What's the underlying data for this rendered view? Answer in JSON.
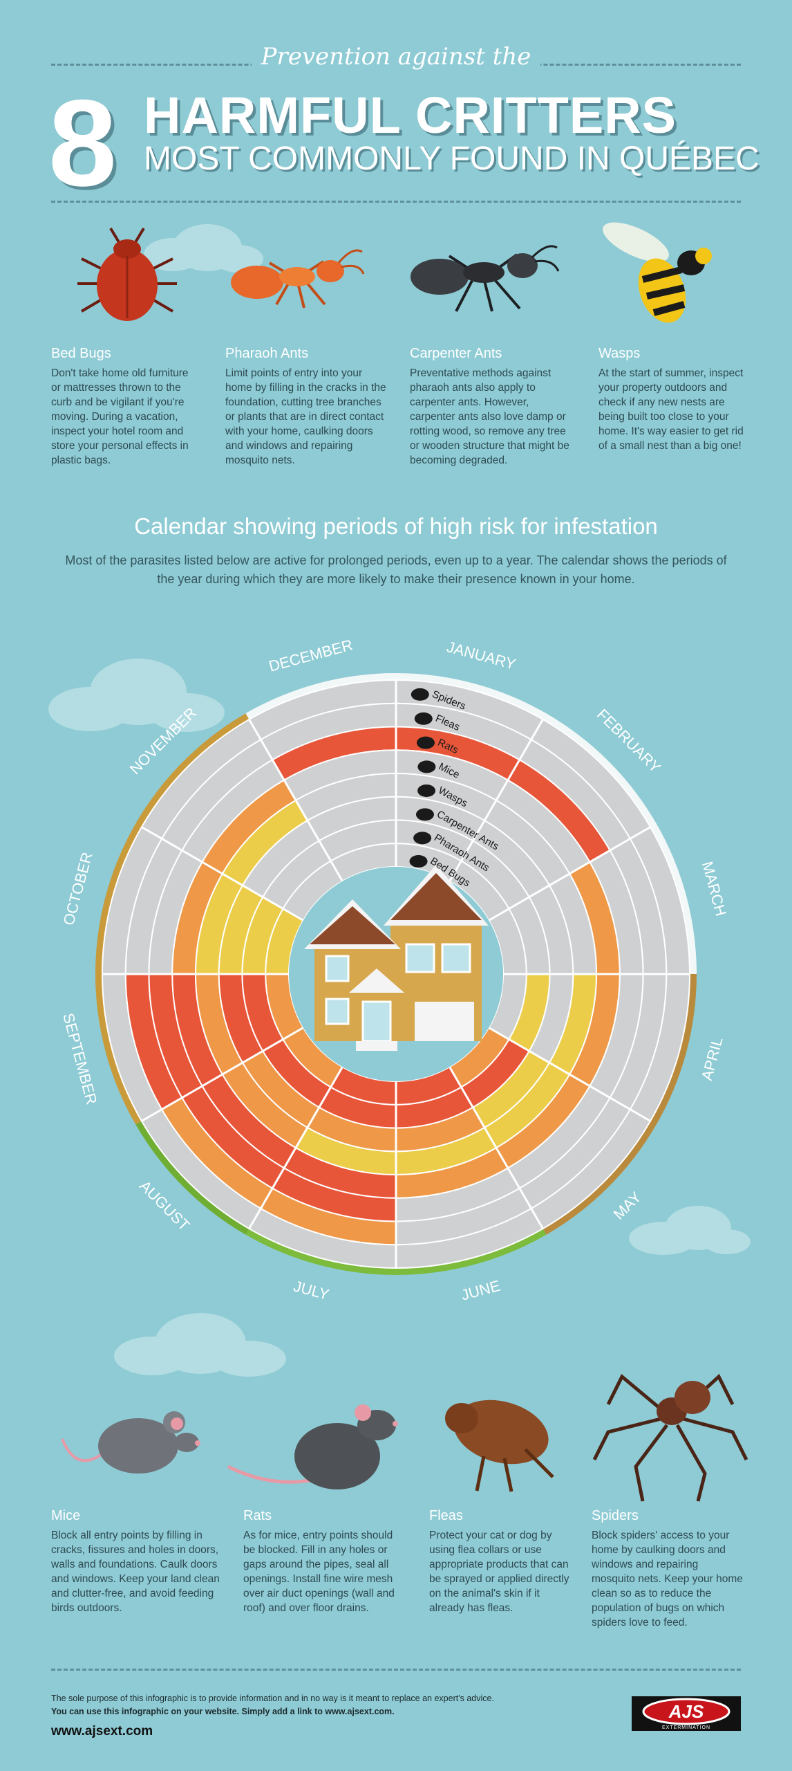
{
  "header": {
    "subtitle": "Prevention against the",
    "number": "8",
    "title_line1": "HARMFUL CRITTERS",
    "title_line2": "MOST COMMONLY FOUND IN QUÉBEC"
  },
  "top_critters": [
    {
      "name": "Bed Bugs",
      "text": "Don't take home old furniture or mattresses thrown to the curb and be vigilant if you're moving. During a vacation, inspect your hotel room and store your personal effects in plastic bags."
    },
    {
      "name": "Pharaoh Ants",
      "text": "Limit points of entry into your home by filling in the cracks in the foundation, cutting tree branches or plants that are in direct contact with your home, caulking doors and windows and repairing mosquito nets."
    },
    {
      "name": "Carpenter Ants",
      "text": "Preventative methods against pharaoh ants also apply to carpenter ants. However, carpenter ants also love damp or rotting wood, so remove any tree or wooden structure that might be becoming degraded."
    },
    {
      "name": "Wasps",
      "text": "At the start of summer, inspect your property outdoors and check if any new nests are being built too close to your home. It's way easier to get rid of a small nest than a big one!"
    }
  ],
  "calendar": {
    "title": "Calendar showing periods of high risk for infestation",
    "description": "Most of the parasites listed below are active for prolonged periods, even up to a year. The calendar shows the periods of the year during which they are more likely to make their presence known in your home.",
    "months": [
      "JANUARY",
      "FEBRUARY",
      "MARCH",
      "APRIL",
      "MAY",
      "JUNE",
      "JULY",
      "AUGUST",
      "SEPTEMBER",
      "OCTOBER",
      "NOVEMBER",
      "DECEMBER"
    ],
    "rings": [
      {
        "name": "Spiders",
        "levels": [
          0,
          0,
          0,
          0,
          0,
          0,
          0,
          0,
          0,
          0,
          0,
          0
        ]
      },
      {
        "name": "Fleas",
        "levels": [
          0,
          0,
          0,
          0,
          0,
          0,
          2,
          2,
          3,
          0,
          0,
          0
        ]
      },
      {
        "name": "Rats",
        "levels": [
          3,
          3,
          0,
          0,
          0,
          0,
          3,
          3,
          3,
          0,
          0,
          3
        ]
      },
      {
        "name": "Mice",
        "levels": [
          0,
          0,
          2,
          2,
          2,
          2,
          3,
          3,
          3,
          2,
          2,
          0
        ]
      },
      {
        "name": "Wasps",
        "levels": [
          0,
          0,
          0,
          1,
          1,
          1,
          1,
          2,
          2,
          1,
          1,
          0
        ]
      },
      {
        "name": "Carpenter Ants",
        "levels": [
          0,
          0,
          0,
          0,
          1,
          2,
          2,
          2,
          3,
          1,
          0,
          0
        ]
      },
      {
        "name": "Pharaoh Ants",
        "levels": [
          0,
          0,
          0,
          1,
          3,
          3,
          3,
          3,
          3,
          1,
          0,
          0
        ]
      },
      {
        "name": "Bed Bugs",
        "levels": [
          0,
          0,
          0,
          0,
          2,
          3,
          3,
          2,
          2,
          1,
          0,
          0
        ]
      }
    ],
    "level_colors": [
      "#cfd0d2",
      "#eccd4a",
      "#ee9848",
      "#e8563a"
    ]
  },
  "bottom_critters": [
    {
      "name": "Mice",
      "text": "Block all entry points by filling in cracks, fissures and holes in doors, walls and foundations. Caulk doors and windows. Keep your land clean and clutter-free, and avoid feeding birds outdoors."
    },
    {
      "name": "Rats",
      "text": "As for mice, entry points should be blocked. Fill in any holes or gaps around the pipes, seal all openings. Install fine wire mesh over air duct openings (wall and roof) and over floor drains."
    },
    {
      "name": "Fleas",
      "text": "Protect your cat or dog by using flea collars or use appropriate products that can be sprayed or applied directly on the animal's skin if it already has fleas."
    },
    {
      "name": "Spiders",
      "text": "Block spiders' access to your home by caulking doors and windows and repairing mosquito nets. Keep your home clean so as to reduce the population of bugs on which spiders love to feed."
    }
  ],
  "footer": {
    "disclaimer": "The sole purpose of this infographic is to provide information and in no way is it meant to replace an expert's advice.",
    "share": "You can use this infographic on your website. Simply add a link to www.ajsext.com.",
    "website": "www.ajsext.com",
    "logo_text": "AJS",
    "logo_sub": "EXTERMINATION"
  },
  "colors": {
    "background": "#8ecbd4",
    "dark_text": "#2f4a52",
    "red": "#e8563a",
    "orange": "#ee9848",
    "yellow": "#eccd4a",
    "grey": "#cfd0d2"
  }
}
